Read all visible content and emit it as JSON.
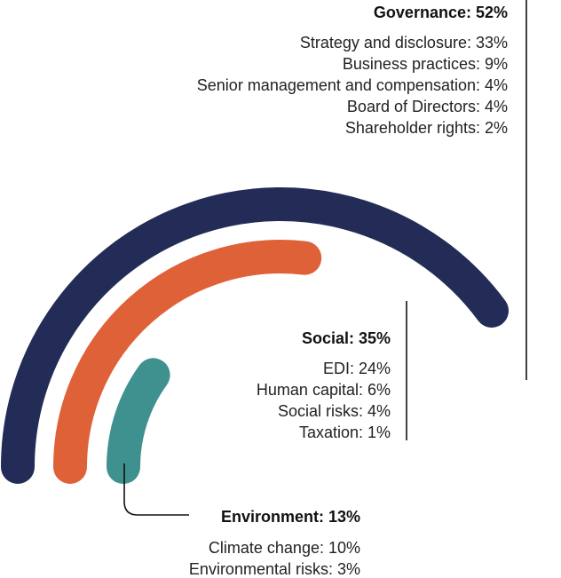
{
  "chart_data": {
    "type": "radial-bar",
    "unit": "%",
    "series": [
      {
        "name": "Governance",
        "title": "Governance: 52%",
        "value": 52,
        "color": "#232c57",
        "items": [
          {
            "label": "Strategy and disclosure: 33%",
            "value": 33
          },
          {
            "label": "Business practices: 9%",
            "value": 9
          },
          {
            "label": "Senior management and compensation: 4%",
            "value": 4
          },
          {
            "label": "Board of Directors: 4%",
            "value": 4
          },
          {
            "label": "Shareholder rights: 2%",
            "value": 2
          }
        ]
      },
      {
        "name": "Social",
        "title": "Social: 35%",
        "value": 35,
        "color": "#df6138",
        "items": [
          {
            "label": "EDI: 24%",
            "value": 24
          },
          {
            "label": "Human capital: 6%",
            "value": 6
          },
          {
            "label": "Social risks: 4%",
            "value": 4
          },
          {
            "label": "Taxation: 1%",
            "value": 1
          }
        ]
      },
      {
        "name": "Environment",
        "title": "Environment: 13%",
        "value": 13,
        "color": "#3f9190",
        "items": [
          {
            "label": "Climate change: 10%",
            "value": 10
          },
          {
            "label": "Environmental risks: 3%",
            "value": 3
          }
        ]
      }
    ],
    "leader_color": "#111111"
  }
}
